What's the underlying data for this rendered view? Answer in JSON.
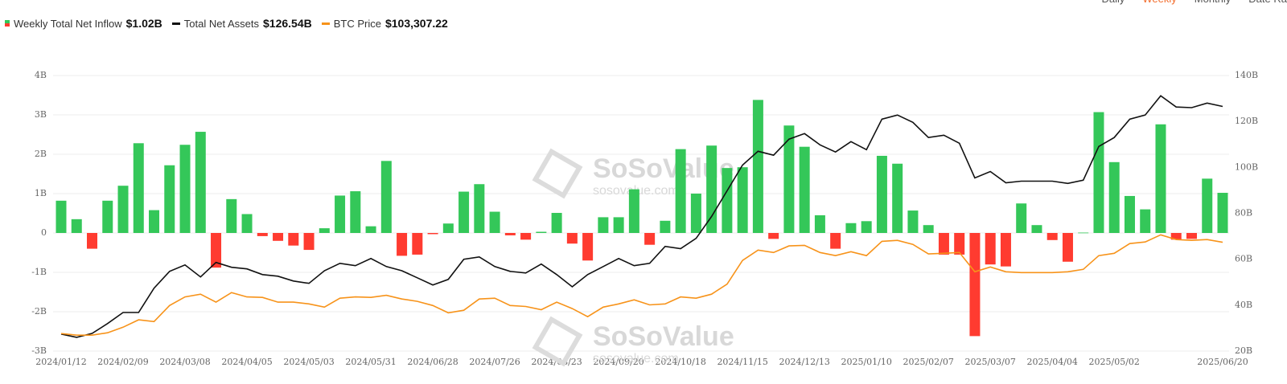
{
  "controls": [
    "Daily",
    "Weekly",
    "Monthly",
    "Date Ra"
  ],
  "watermark": {
    "brand": "SoSoValue",
    "site": "sosovalue.com"
  },
  "chart_data": {
    "type": "combo",
    "categories": [
      "2024/01/12",
      null,
      null,
      null,
      "2024/02/09",
      null,
      null,
      null,
      "2024/03/08",
      null,
      null,
      null,
      "2024/04/05",
      null,
      null,
      null,
      "2024/05/03",
      null,
      null,
      null,
      "2024/05/31",
      null,
      null,
      null,
      "2024/06/28",
      null,
      null,
      null,
      "2024/07/26",
      null,
      null,
      null,
      "2024/08/23",
      null,
      null,
      null,
      "2024/09/20",
      null,
      null,
      null,
      "2024/10/18",
      null,
      null,
      null,
      "2024/11/15",
      null,
      null,
      null,
      "2024/12/13",
      null,
      null,
      null,
      "2025/01/10",
      null,
      null,
      null,
      "2025/02/07",
      null,
      null,
      null,
      "2025/03/07",
      null,
      null,
      null,
      "2025/04/04",
      null,
      null,
      null,
      "2025/05/02",
      null,
      null,
      null,
      null,
      null,
      null,
      "2025/06/20"
    ],
    "ylim": [
      -3,
      4
    ],
    "yticks": [
      {
        "value": -3,
        "label": "-3B"
      },
      {
        "value": -2,
        "label": "-2B"
      },
      {
        "value": -1,
        "label": "-1B"
      },
      {
        "value": 0,
        "label": "0"
      },
      {
        "value": 1,
        "label": "1B"
      },
      {
        "value": 2,
        "label": "2B"
      },
      {
        "value": 3,
        "label": "3B"
      },
      {
        "value": 4,
        "label": "4B"
      }
    ],
    "y2lim": [
      20,
      140
    ],
    "y2ticks": [
      {
        "value": 20,
        "label": "20B"
      },
      {
        "value": 40,
        "label": "40B"
      },
      {
        "value": 60,
        "label": "60B"
      },
      {
        "value": 80,
        "label": "80B"
      },
      {
        "value": 100,
        "label": "100B"
      },
      {
        "value": 120,
        "label": "120B"
      },
      {
        "value": 140,
        "label": "140B"
      }
    ],
    "y3lim": [
      35000,
      208000
    ],
    "grid": true,
    "series": [
      {
        "name": "Weekly Total Net Inflow",
        "legend_value": "$1.02B",
        "type": "bar",
        "color": "#34c759",
        "negative_color": "#ff3b30",
        "values": [
          0.82,
          0.35,
          -0.4,
          0.82,
          1.2,
          2.28,
          0.58,
          1.72,
          2.24,
          2.57,
          -0.88,
          0.86,
          0.48,
          -0.08,
          -0.2,
          -0.32,
          -0.43,
          0.12,
          0.95,
          1.06,
          0.17,
          1.83,
          -0.58,
          -0.55,
          -0.03,
          0.24,
          1.05,
          1.24,
          0.54,
          -0.06,
          -0.17,
          0.03,
          0.51,
          -0.27,
          -0.7,
          0.4,
          0.4,
          1.11,
          -0.3,
          0.31,
          2.13,
          1.0,
          2.22,
          1.65,
          1.67,
          3.38,
          -0.15,
          2.73,
          2.19,
          0.45,
          -0.4,
          0.25,
          0.3,
          1.96,
          1.76,
          0.57,
          0.2,
          -0.55,
          -0.55,
          -2.62,
          -0.8,
          -0.85,
          0.75,
          0.2,
          -0.18,
          -0.73,
          0.01,
          3.07,
          1.8,
          0.94,
          0.6,
          2.76,
          -0.17,
          -0.15,
          1.38,
          1.02
        ]
      },
      {
        "name": "Total Net Assets",
        "legend_value": "$126.54B",
        "type": "line",
        "axis": "y2",
        "color": "#111111",
        "values": [
          27.4,
          26,
          27.7,
          32,
          36.8,
          36.8,
          47.4,
          54.7,
          57.5,
          52.3,
          58.6,
          56.5,
          55.8,
          53.3,
          52.6,
          50.5,
          49.5,
          55,
          58.2,
          57.2,
          60.3,
          56.8,
          55,
          51.9,
          48.8,
          51.2,
          60,
          61,
          56.8,
          54.7,
          54,
          57.9,
          53.3,
          48,
          53.3,
          56.8,
          60.3,
          57.2,
          58.2,
          65.6,
          64.6,
          69.1,
          78.6,
          89.8,
          101,
          107,
          105.3,
          112.3,
          114.7,
          109.8,
          106.7,
          111.2,
          107.7,
          121,
          122.8,
          119.6,
          113,
          114,
          110.5,
          95.4,
          98.2,
          93.3,
          94,
          94,
          94,
          93,
          94.4,
          109.1,
          113,
          121,
          122.8,
          131.2,
          126.3,
          126,
          128,
          126.54
        ]
      },
      {
        "name": "BTC Price",
        "legend_value": "$103,307.22",
        "type": "line",
        "axis": "y3",
        "color": "#f7931a",
        "values": [
          46000,
          45000,
          45000,
          46500,
          50000,
          54600,
          53500,
          63600,
          69000,
          70700,
          65700,
          71700,
          69000,
          68700,
          65700,
          65700,
          64600,
          62600,
          68200,
          69000,
          68700,
          70000,
          67700,
          66200,
          63600,
          59000,
          60600,
          67700,
          68200,
          63600,
          63000,
          61000,
          65700,
          61700,
          56600,
          62600,
          64600,
          67200,
          64000,
          64600,
          69000,
          68200,
          70700,
          77000,
          91900,
          98400,
          96900,
          101000,
          101400,
          96900,
          94900,
          97400,
          94900,
          103900,
          104500,
          102000,
          96000,
          96400,
          96900,
          84800,
          87800,
          84800,
          84300,
          84300,
          84300,
          84800,
          86300,
          94900,
          96400,
          102500,
          103500,
          108000,
          105000,
          104500,
          105000,
          103307.22
        ]
      }
    ]
  }
}
